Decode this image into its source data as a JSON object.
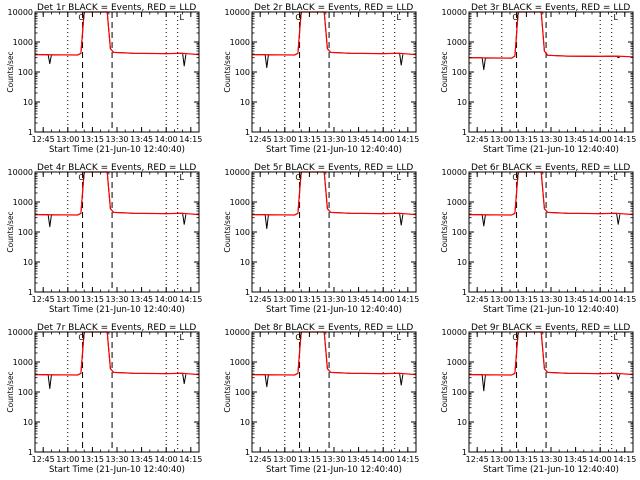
{
  "colors": {
    "events": "#000000",
    "lld": "#ff0000",
    "background": "#ffffff"
  },
  "panel_template": {
    "xlabel": "Start Time (21-Jun-10 12:40:40)",
    "ylabel": "Counts/sec",
    "ytick_labels": [
      "1",
      "10",
      "100",
      "1000",
      "10000"
    ],
    "xtick_labels": [
      "12:45",
      "13:00",
      "13:15",
      "13:30",
      "13:45",
      "14:00",
      "14:15"
    ],
    "flag_labels": [
      "O",
      "L"
    ]
  },
  "chart_data": [
    {
      "type": "line",
      "title": "Det 1r BLACK = Events, RED = LLD",
      "xlabel": "Start Time (21-Jun-10 12:40:40)",
      "ylabel": "Counts/sec",
      "yscale": "log",
      "ylim": [
        1,
        10000
      ],
      "xlim": [
        "12:40",
        "14:20"
      ],
      "x_ticks": [
        "12:45",
        "13:00",
        "13:15",
        "13:30",
        "13:45",
        "14:00",
        "14:15"
      ],
      "dashed_vlines": [
        "13:09",
        "13:27"
      ],
      "dotted_vlines": [
        "13:00",
        "14:00",
        "14:07"
      ],
      "series": [
        {
          "name": "Events",
          "color": "#000000",
          "x": [
            "12:40",
            "12:48",
            "12:49",
            "12:50",
            "13:06",
            "13:08",
            "13:10",
            "13:14",
            "13:24",
            "13:26",
            "13:28",
            "13:40",
            "14:00",
            "14:10",
            "14:11",
            "14:12"
          ],
          "y": [
            380,
            380,
            190,
            370,
            370,
            420,
            10000,
            10000,
            10000,
            600,
            450,
            420,
            410,
            420,
            160,
            390
          ]
        },
        {
          "name": "LLD",
          "color": "#ff0000",
          "x": [
            "12:40",
            "13:06",
            "13:08",
            "13:10",
            "13:14",
            "13:24",
            "13:26",
            "13:28",
            "13:40",
            "14:00",
            "14:10",
            "14:20"
          ],
          "y": [
            380,
            370,
            420,
            10000,
            10000,
            10000,
            600,
            450,
            420,
            410,
            420,
            380
          ]
        }
      ]
    },
    {
      "type": "line",
      "title": "Det 2r BLACK = Events, RED = LLD",
      "xlabel": "Start Time (21-Jun-10 12:40:40)",
      "ylabel": "Counts/sec",
      "yscale": "log",
      "ylim": [
        1,
        10000
      ],
      "xlim": [
        "12:40",
        "14:20"
      ],
      "x_ticks": [
        "12:45",
        "13:00",
        "13:15",
        "13:30",
        "13:45",
        "14:00",
        "14:15"
      ],
      "dashed_vlines": [
        "13:09",
        "13:27"
      ],
      "dotted_vlines": [
        "13:00",
        "14:00",
        "14:07"
      ],
      "series": [
        {
          "name": "Events",
          "color": "#000000",
          "x": [
            "12:40",
            "12:48",
            "12:49",
            "12:50",
            "13:06",
            "13:08",
            "13:10",
            "13:14",
            "13:24",
            "13:26",
            "13:28",
            "13:40",
            "14:00",
            "14:10",
            "14:11",
            "14:12"
          ],
          "y": [
            380,
            380,
            140,
            370,
            370,
            420,
            10000,
            10000,
            10000,
            600,
            450,
            420,
            410,
            420,
            170,
            390
          ]
        },
        {
          "name": "LLD",
          "color": "#ff0000",
          "x": [
            "12:40",
            "13:06",
            "13:08",
            "13:10",
            "13:14",
            "13:24",
            "13:26",
            "13:28",
            "13:40",
            "14:00",
            "14:10",
            "14:20"
          ],
          "y": [
            380,
            370,
            420,
            10000,
            10000,
            10000,
            600,
            450,
            420,
            410,
            420,
            380
          ]
        }
      ]
    },
    {
      "type": "line",
      "title": "Det 3r BLACK = Events, RED = LLD",
      "xlabel": "Start Time (21-Jun-10 12:40:40)",
      "ylabel": "Counts/sec",
      "yscale": "log",
      "ylim": [
        1,
        10000
      ],
      "xlim": [
        "12:40",
        "14:20"
      ],
      "x_ticks": [
        "12:45",
        "13:00",
        "13:15",
        "13:30",
        "13:45",
        "14:00",
        "14:15"
      ],
      "dashed_vlines": [
        "13:09",
        "13:27"
      ],
      "dotted_vlines": [
        "13:00",
        "14:00",
        "14:07"
      ],
      "series": [
        {
          "name": "Events",
          "color": "#000000",
          "x": [
            "12:40",
            "12:48",
            "12:49",
            "12:50",
            "13:06",
            "13:08",
            "13:10",
            "13:14",
            "13:24",
            "13:26",
            "13:28",
            "13:40",
            "14:00",
            "14:10",
            "14:11",
            "14:12"
          ],
          "y": [
            300,
            300,
            120,
            290,
            290,
            340,
            10000,
            10000,
            10000,
            500,
            360,
            340,
            330,
            340,
            300,
            320
          ]
        },
        {
          "name": "LLD",
          "color": "#ff0000",
          "x": [
            "12:40",
            "13:06",
            "13:08",
            "13:10",
            "13:14",
            "13:24",
            "13:26",
            "13:28",
            "13:40",
            "14:00",
            "14:10",
            "14:20"
          ],
          "y": [
            300,
            290,
            340,
            10000,
            10000,
            10000,
            500,
            360,
            340,
            330,
            340,
            320
          ]
        }
      ]
    },
    {
      "type": "line",
      "title": "Det 4r BLACK = Events, RED = LLD",
      "xlabel": "Start Time (21-Jun-10 12:40:40)",
      "ylabel": "Counts/sec",
      "yscale": "log",
      "ylim": [
        1,
        10000
      ],
      "xlim": [
        "12:40",
        "14:20"
      ],
      "x_ticks": [
        "12:45",
        "13:00",
        "13:15",
        "13:30",
        "13:45",
        "14:00",
        "14:15"
      ],
      "dashed_vlines": [
        "13:09",
        "13:27"
      ],
      "dotted_vlines": [
        "13:00",
        "14:00",
        "14:07"
      ],
      "series": [
        {
          "name": "Events",
          "color": "#000000",
          "x": [
            "12:40",
            "12:48",
            "12:49",
            "12:50",
            "13:06",
            "13:08",
            "13:10",
            "13:14",
            "13:24",
            "13:26",
            "13:28",
            "13:40",
            "14:00",
            "14:10",
            "14:11",
            "14:12"
          ],
          "y": [
            380,
            380,
            150,
            370,
            370,
            420,
            10000,
            10000,
            10000,
            600,
            450,
            420,
            410,
            420,
            180,
            390
          ]
        },
        {
          "name": "LLD",
          "color": "#ff0000",
          "x": [
            "12:40",
            "13:06",
            "13:08",
            "13:10",
            "13:14",
            "13:24",
            "13:26",
            "13:28",
            "13:40",
            "14:00",
            "14:10",
            "14:20"
          ],
          "y": [
            380,
            370,
            420,
            10000,
            10000,
            10000,
            600,
            450,
            420,
            410,
            420,
            380
          ]
        }
      ]
    },
    {
      "type": "line",
      "title": "Det 5r BLACK = Events, RED = LLD",
      "xlabel": "Start Time (21-Jun-10 12:40:40)",
      "ylabel": "Counts/sec",
      "yscale": "log",
      "ylim": [
        1,
        10000
      ],
      "xlim": [
        "12:40",
        "14:20"
      ],
      "x_ticks": [
        "12:45",
        "13:00",
        "13:15",
        "13:30",
        "13:45",
        "14:00",
        "14:15"
      ],
      "dashed_vlines": [
        "13:09",
        "13:27"
      ],
      "dotted_vlines": [
        "13:00",
        "14:00",
        "14:07"
      ],
      "series": [
        {
          "name": "Events",
          "color": "#000000",
          "x": [
            "12:40",
            "12:48",
            "12:49",
            "12:50",
            "13:06",
            "13:08",
            "13:10",
            "13:14",
            "13:24",
            "13:26",
            "13:28",
            "13:40",
            "14:00",
            "14:10",
            "14:11",
            "14:12"
          ],
          "y": [
            380,
            380,
            130,
            370,
            370,
            420,
            10000,
            10000,
            10000,
            600,
            450,
            420,
            410,
            420,
            170,
            390
          ]
        },
        {
          "name": "LLD",
          "color": "#ff0000",
          "x": [
            "12:40",
            "13:06",
            "13:08",
            "13:10",
            "13:14",
            "13:24",
            "13:26",
            "13:28",
            "13:40",
            "14:00",
            "14:10",
            "14:20"
          ],
          "y": [
            380,
            370,
            420,
            10000,
            10000,
            10000,
            600,
            450,
            420,
            410,
            420,
            380
          ]
        }
      ]
    },
    {
      "type": "line",
      "title": "Det 6r BLACK = Events, RED = LLD",
      "xlabel": "Start Time (21-Jun-10 12:40:40)",
      "ylabel": "Counts/sec",
      "yscale": "log",
      "ylim": [
        1,
        10000
      ],
      "xlim": [
        "12:40",
        "14:20"
      ],
      "x_ticks": [
        "12:45",
        "13:00",
        "13:15",
        "13:30",
        "13:45",
        "14:00",
        "14:15"
      ],
      "dashed_vlines": [
        "13:09",
        "13:27"
      ],
      "dotted_vlines": [
        "13:00",
        "14:00",
        "14:07"
      ],
      "series": [
        {
          "name": "Events",
          "color": "#000000",
          "x": [
            "12:40",
            "12:48",
            "12:49",
            "12:50",
            "13:06",
            "13:08",
            "13:10",
            "13:14",
            "13:24",
            "13:26",
            "13:28",
            "13:40",
            "14:00",
            "14:10",
            "14:11",
            "14:12"
          ],
          "y": [
            380,
            380,
            160,
            370,
            370,
            420,
            10000,
            10000,
            10000,
            600,
            450,
            420,
            410,
            420,
            180,
            390
          ]
        },
        {
          "name": "LLD",
          "color": "#ff0000",
          "x": [
            "12:40",
            "13:06",
            "13:08",
            "13:10",
            "13:14",
            "13:24",
            "13:26",
            "13:28",
            "13:40",
            "14:00",
            "14:10",
            "14:20"
          ],
          "y": [
            380,
            370,
            420,
            10000,
            10000,
            10000,
            600,
            450,
            420,
            410,
            420,
            380
          ]
        }
      ]
    },
    {
      "type": "line",
      "title": "Det 7r BLACK = Events, RED = LLD",
      "xlabel": "Start Time (21-Jun-10 12:40:40)",
      "ylabel": "Counts/sec",
      "yscale": "log",
      "ylim": [
        1,
        10000
      ],
      "xlim": [
        "12:40",
        "14:20"
      ],
      "x_ticks": [
        "12:45",
        "13:00",
        "13:15",
        "13:30",
        "13:45",
        "14:00",
        "14:15"
      ],
      "dashed_vlines": [
        "13:09",
        "13:27"
      ],
      "dotted_vlines": [
        "13:00",
        "14:00",
        "14:07"
      ],
      "series": [
        {
          "name": "Events",
          "color": "#000000",
          "x": [
            "12:40",
            "12:48",
            "12:49",
            "12:50",
            "13:06",
            "13:08",
            "13:10",
            "13:14",
            "13:24",
            "13:26",
            "13:28",
            "13:40",
            "14:00",
            "14:10",
            "14:11",
            "14:12"
          ],
          "y": [
            380,
            380,
            130,
            370,
            370,
            420,
            10000,
            10000,
            10000,
            600,
            450,
            420,
            410,
            420,
            190,
            390
          ]
        },
        {
          "name": "LLD",
          "color": "#ff0000",
          "x": [
            "12:40",
            "13:06",
            "13:08",
            "13:10",
            "13:14",
            "13:24",
            "13:26",
            "13:28",
            "13:40",
            "14:00",
            "14:10",
            "14:20"
          ],
          "y": [
            380,
            370,
            420,
            10000,
            10000,
            10000,
            600,
            450,
            420,
            410,
            420,
            380
          ]
        }
      ]
    },
    {
      "type": "line",
      "title": "Det 8r BLACK = Events, RED = LLD",
      "xlabel": "Start Time (21-Jun-10 12:40:40)",
      "ylabel": "Counts/sec",
      "yscale": "log",
      "ylim": [
        1,
        10000
      ],
      "xlim": [
        "12:40",
        "14:20"
      ],
      "x_ticks": [
        "12:45",
        "13:00",
        "13:15",
        "13:30",
        "13:45",
        "14:00",
        "14:15"
      ],
      "dashed_vlines": [
        "13:09",
        "13:27"
      ],
      "dotted_vlines": [
        "13:00",
        "14:00",
        "14:07"
      ],
      "series": [
        {
          "name": "Events",
          "color": "#000000",
          "x": [
            "12:40",
            "12:48",
            "12:49",
            "12:50",
            "13:06",
            "13:08",
            "13:10",
            "13:14",
            "13:24",
            "13:26",
            "13:28",
            "13:40",
            "14:00",
            "14:10",
            "14:11",
            "14:12"
          ],
          "y": [
            380,
            380,
            150,
            370,
            370,
            420,
            10000,
            10000,
            10000,
            600,
            450,
            420,
            410,
            420,
            170,
            390
          ]
        },
        {
          "name": "LLD",
          "color": "#ff0000",
          "x": [
            "12:40",
            "13:06",
            "13:08",
            "13:10",
            "13:14",
            "13:24",
            "13:26",
            "13:28",
            "13:40",
            "14:00",
            "14:10",
            "14:20"
          ],
          "y": [
            380,
            370,
            420,
            10000,
            10000,
            10000,
            600,
            450,
            420,
            410,
            420,
            380
          ]
        }
      ]
    },
    {
      "type": "line",
      "title": "Det 9r BLACK = Events, RED = LLD",
      "xlabel": "Start Time (21-Jun-10 12:40:40)",
      "ylabel": "Counts/sec",
      "yscale": "log",
      "ylim": [
        1,
        10000
      ],
      "xlim": [
        "12:40",
        "14:20"
      ],
      "x_ticks": [
        "12:45",
        "13:00",
        "13:15",
        "13:30",
        "13:45",
        "14:00",
        "14:15"
      ],
      "dashed_vlines": [
        "13:09",
        "13:27"
      ],
      "dotted_vlines": [
        "13:00",
        "14:00",
        "14:07"
      ],
      "series": [
        {
          "name": "Events",
          "color": "#000000",
          "x": [
            "12:40",
            "12:48",
            "12:49",
            "12:50",
            "13:06",
            "13:08",
            "13:10",
            "13:14",
            "13:24",
            "13:26",
            "13:28",
            "13:40",
            "14:00",
            "14:10",
            "14:11",
            "14:12"
          ],
          "y": [
            380,
            380,
            110,
            370,
            370,
            420,
            10000,
            10000,
            10000,
            600,
            450,
            420,
            410,
            420,
            260,
            390
          ]
        },
        {
          "name": "LLD",
          "color": "#ff0000",
          "x": [
            "12:40",
            "13:06",
            "13:08",
            "13:10",
            "13:14",
            "13:24",
            "13:26",
            "13:28",
            "13:40",
            "14:00",
            "14:10",
            "14:20"
          ],
          "y": [
            380,
            370,
            420,
            10000,
            10000,
            10000,
            600,
            450,
            420,
            410,
            420,
            380
          ]
        }
      ]
    }
  ]
}
